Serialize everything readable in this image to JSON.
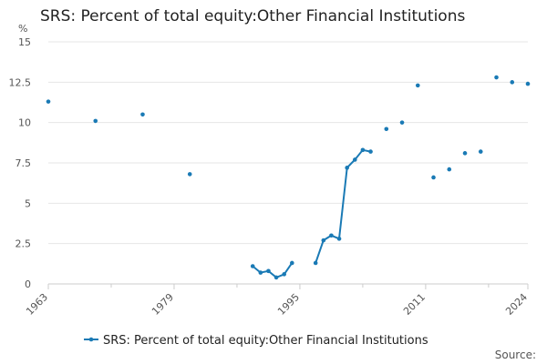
{
  "chart_data": {
    "type": "line",
    "title": "SRS: Percent of total equity:Other Financial Institutions",
    "ylabel": "%",
    "xlabel": "",
    "xlim": [
      1963,
      2024
    ],
    "ylim": [
      0,
      15
    ],
    "y_ticks": [
      0,
      2.5,
      5,
      7.5,
      10,
      12.5,
      15
    ],
    "y_tick_labels": [
      "0",
      "2.5",
      "5",
      "7.5",
      "10",
      "12.5",
      "15"
    ],
    "x_ticks": [
      1963,
      1979,
      1995,
      2011,
      2024
    ],
    "grid": "horizontal",
    "legend_position": "bottom",
    "source_text": "Source:",
    "series": [
      {
        "name": "SRS: Percent of total equity:Other Financial Institutions",
        "color": "#1a7ab5",
        "points": [
          [
            1963,
            11.3
          ],
          [
            1969,
            10.1
          ],
          [
            1975,
            10.5
          ],
          [
            1981,
            6.8
          ],
          [
            1989,
            1.1
          ],
          [
            1990,
            0.7
          ],
          [
            1991,
            0.8
          ],
          [
            1992,
            0.4
          ],
          [
            1993,
            0.6
          ],
          [
            1994,
            1.3
          ],
          [
            1997,
            1.3
          ],
          [
            1998,
            2.7
          ],
          [
            1999,
            3.0
          ],
          [
            2000,
            2.8
          ],
          [
            2001,
            7.2
          ],
          [
            2002,
            7.7
          ],
          [
            2003,
            8.3
          ],
          [
            2004,
            8.2
          ],
          [
            2006,
            9.6
          ],
          [
            2008,
            10.0
          ],
          [
            2010,
            12.3
          ],
          [
            2012,
            6.6
          ],
          [
            2014,
            7.1
          ],
          [
            2016,
            8.1
          ],
          [
            2018,
            8.2
          ],
          [
            2020,
            12.8
          ],
          [
            2022,
            12.5
          ],
          [
            2024,
            12.4
          ]
        ]
      }
    ]
  }
}
